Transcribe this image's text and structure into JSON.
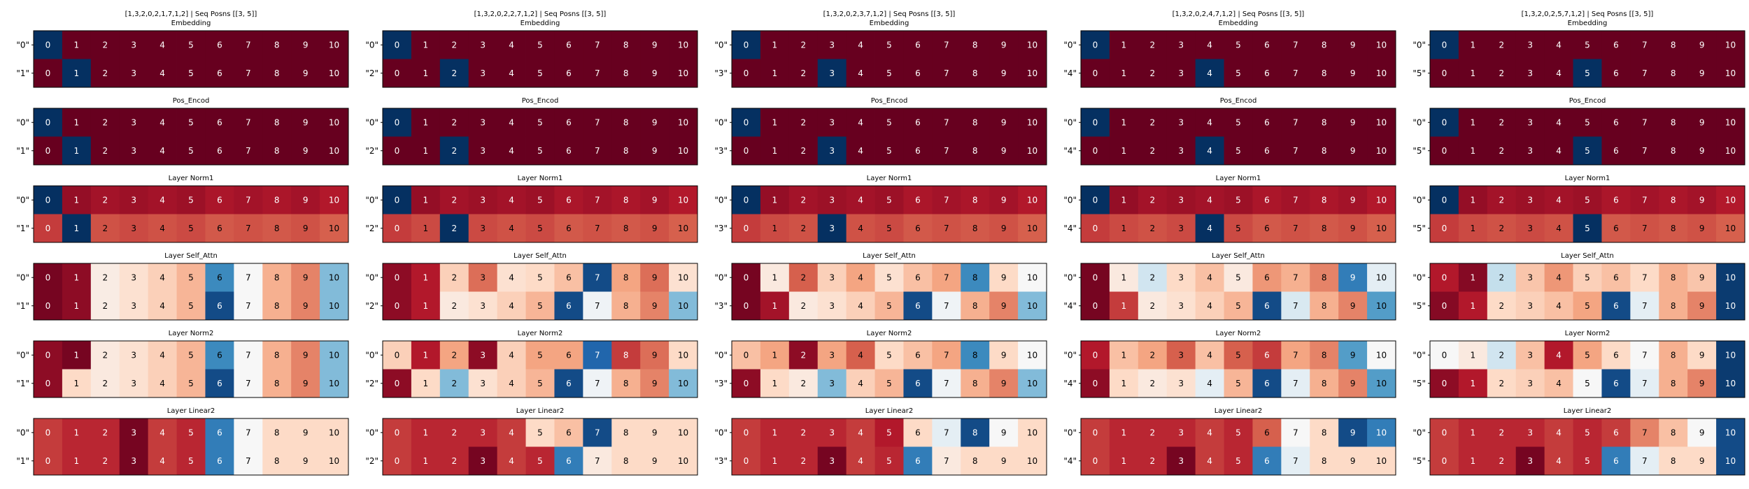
{
  "figure": {
    "row_titles": [
      "Embedding",
      "Pos_Encod",
      "Layer Norm1",
      "Layer Self_Attn",
      "Layer Norm2",
      "Layer Linear2"
    ],
    "columns": [
      {
        "title": "[1,3,2,0,2,1,7,1,2] | Seq Posns [[3, 5]]",
        "ylabels": [
          "\"0\"",
          "\"1\""
        ],
        "seq": [
          0,
          1
        ]
      },
      {
        "title": "[1,3,2,0,2,2,7,1,2] | Seq Posns [[3, 5]]",
        "ylabels": [
          "\"0\"",
          "\"2\""
        ],
        "seq": [
          0,
          2
        ]
      },
      {
        "title": "[1,3,2,0,2,3,7,1,2] | Seq Posns [[3, 5]]",
        "ylabels": [
          "\"0\"",
          "\"3\""
        ],
        "seq": [
          0,
          3
        ]
      },
      {
        "title": "[1,3,2,0,2,4,7,1,2] | Seq Posns [[3, 5]]",
        "ylabels": [
          "\"0\"",
          "\"4\""
        ],
        "seq": [
          0,
          4
        ]
      },
      {
        "title": "[1,3,2,0,2,5,7,1,2] | Seq Posns [[3, 5]]",
        "ylabels": [
          "\"0\"",
          "\"5\""
        ],
        "seq": [
          0,
          5
        ]
      }
    ]
  },
  "chart_data": {
    "type": "heatmap",
    "colormap": "RdBu",
    "x_categories": [
      "0",
      "1",
      "2",
      "3",
      "4",
      "5",
      "6",
      "7",
      "8",
      "9",
      "10"
    ],
    "cell_labels": [
      "0",
      "1",
      "2",
      "3",
      "4",
      "5",
      "6",
      "7",
      "8",
      "9",
      "10"
    ],
    "vmin": 0,
    "vmax": 1,
    "note_values": "values are estimated normalized color intensities in [0,1] (0 = dark red, 1 = dark blue)",
    "panels": {
      "Embedding": [
        [
          [
            1,
            0,
            0,
            0,
            0,
            0,
            0,
            0,
            0,
            0,
            0
          ],
          [
            0,
            1,
            0,
            0,
            0,
            0,
            0,
            0,
            0,
            0,
            0
          ]
        ],
        [
          [
            1,
            0,
            0,
            0,
            0,
            0,
            0,
            0,
            0,
            0,
            0
          ],
          [
            0,
            0,
            1,
            0,
            0,
            0,
            0,
            0,
            0,
            0,
            0
          ]
        ],
        [
          [
            1,
            0,
            0,
            0,
            0,
            0,
            0,
            0,
            0,
            0,
            0
          ],
          [
            0,
            0,
            0,
            1,
            0,
            0,
            0,
            0,
            0,
            0,
            0
          ]
        ],
        [
          [
            1,
            0,
            0,
            0,
            0,
            0,
            0,
            0,
            0,
            0,
            0
          ],
          [
            0,
            0,
            0,
            0,
            1,
            0,
            0,
            0,
            0,
            0,
            0
          ]
        ],
        [
          [
            1,
            0,
            0,
            0,
            0,
            0,
            0,
            0,
            0,
            0,
            0
          ],
          [
            0,
            0,
            0,
            0,
            0,
            1,
            0,
            0,
            0,
            0,
            0
          ]
        ]
      ],
      "Pos_Encod": [
        [
          [
            1,
            0,
            0,
            0,
            0,
            0,
            0,
            0,
            0,
            0,
            0
          ],
          [
            0,
            1,
            0,
            0,
            0,
            0,
            0,
            0,
            0,
            0,
            0
          ]
        ],
        [
          [
            1,
            0,
            0,
            0,
            0,
            0,
            0,
            0,
            0,
            0,
            0
          ],
          [
            0,
            0,
            1,
            0,
            0,
            0,
            0,
            0,
            0,
            0,
            0
          ]
        ],
        [
          [
            1,
            0,
            0,
            0,
            0,
            0,
            0,
            0,
            0,
            0,
            0
          ],
          [
            0,
            0,
            0,
            1,
            0,
            0,
            0,
            0,
            0,
            0,
            0
          ]
        ],
        [
          [
            1,
            0,
            0,
            0,
            0,
            0,
            0,
            0,
            0,
            0,
            0
          ],
          [
            0,
            0,
            0,
            0,
            1,
            0,
            0,
            0,
            0,
            0,
            0
          ]
        ],
        [
          [
            1,
            0,
            0,
            0,
            0,
            0,
            0,
            0,
            0,
            0,
            0
          ],
          [
            0,
            0,
            0,
            0,
            0,
            1,
            0,
            0,
            0,
            0,
            0
          ]
        ]
      ],
      "Layer Norm1": [
        [
          [
            1,
            0.06,
            0.08,
            0.07,
            0.08,
            0.07,
            0.09,
            0.08,
            0.09,
            0.08,
            0.1
          ],
          [
            0.15,
            1,
            0.18,
            0.17,
            0.18,
            0.17,
            0.19,
            0.18,
            0.19,
            0.18,
            0.2
          ]
        ],
        [
          [
            1,
            0.06,
            0.08,
            0.07,
            0.08,
            0.07,
            0.09,
            0.08,
            0.09,
            0.08,
            0.1
          ],
          [
            0.15,
            0.17,
            1,
            0.17,
            0.18,
            0.17,
            0.19,
            0.18,
            0.19,
            0.18,
            0.2
          ]
        ],
        [
          [
            1,
            0.06,
            0.08,
            0.07,
            0.08,
            0.07,
            0.09,
            0.08,
            0.09,
            0.08,
            0.1
          ],
          [
            0.15,
            0.17,
            0.18,
            1,
            0.18,
            0.17,
            0.19,
            0.18,
            0.19,
            0.18,
            0.2
          ]
        ],
        [
          [
            1,
            0.06,
            0.08,
            0.07,
            0.08,
            0.07,
            0.09,
            0.08,
            0.09,
            0.08,
            0.1
          ],
          [
            0.15,
            0.17,
            0.18,
            0.17,
            1,
            0.17,
            0.19,
            0.18,
            0.19,
            0.18,
            0.2
          ]
        ],
        [
          [
            1,
            0.06,
            0.08,
            0.07,
            0.08,
            0.07,
            0.09,
            0.08,
            0.09,
            0.08,
            0.1
          ],
          [
            0.15,
            0.17,
            0.18,
            0.17,
            0.18,
            1,
            0.19,
            0.18,
            0.19,
            0.18,
            0.2
          ]
        ]
      ],
      "Layer Self_Attn": [
        [
          [
            0.02,
            0.05,
            0.46,
            0.42,
            0.38,
            0.33,
            0.82,
            0.5,
            0.32,
            0.25,
            0.72
          ],
          [
            0.02,
            0.05,
            0.46,
            0.42,
            0.38,
            0.33,
            0.95,
            0.5,
            0.32,
            0.25,
            0.72
          ]
        ],
        [
          [
            0.05,
            0.1,
            0.38,
            0.22,
            0.42,
            0.4,
            0.35,
            0.95,
            0.3,
            0.22,
            0.42
          ],
          [
            0.05,
            0.1,
            0.45,
            0.42,
            0.38,
            0.33,
            0.95,
            0.52,
            0.32,
            0.25,
            0.72
          ]
        ],
        [
          [
            0.02,
            0.45,
            0.2,
            0.38,
            0.3,
            0.42,
            0.35,
            0.3,
            0.82,
            0.4,
            0.5
          ],
          [
            0.02,
            0.08,
            0.45,
            0.42,
            0.38,
            0.33,
            0.95,
            0.52,
            0.32,
            0.25,
            0.72
          ]
        ],
        [
          [
            0.02,
            0.45,
            0.6,
            0.4,
            0.35,
            0.45,
            0.28,
            0.32,
            0.25,
            0.85,
            0.55
          ],
          [
            0.02,
            0.15,
            0.45,
            0.42,
            0.38,
            0.33,
            0.95,
            0.58,
            0.32,
            0.25,
            0.78
          ]
        ],
        [
          [
            0.1,
            0.04,
            0.62,
            0.36,
            0.28,
            0.38,
            0.35,
            0.4,
            0.32,
            0.36,
            0.98
          ],
          [
            0.04,
            0.1,
            0.4,
            0.38,
            0.35,
            0.3,
            0.95,
            0.55,
            0.32,
            0.25,
            0.98
          ]
        ]
      ],
      "Layer Norm2": [
        [
          [
            0.05,
            0.02,
            0.45,
            0.42,
            0.38,
            0.33,
            0.82,
            0.5,
            0.32,
            0.25,
            0.72
          ],
          [
            0.05,
            0.4,
            0.45,
            0.42,
            0.38,
            0.33,
            0.95,
            0.5,
            0.32,
            0.25,
            0.72
          ]
        ],
        [
          [
            0.38,
            0.1,
            0.3,
            0.05,
            0.38,
            0.3,
            0.3,
            0.9,
            0.15,
            0.22,
            0.4
          ],
          [
            0.05,
            0.4,
            0.72,
            0.42,
            0.38,
            0.33,
            0.95,
            0.52,
            0.32,
            0.25,
            0.72
          ]
        ],
        [
          [
            0.35,
            0.3,
            0.05,
            0.3,
            0.2,
            0.4,
            0.35,
            0.3,
            0.82,
            0.4,
            0.5
          ],
          [
            0.05,
            0.4,
            0.45,
            0.72,
            0.38,
            0.33,
            0.95,
            0.52,
            0.32,
            0.25,
            0.72
          ]
        ],
        [
          [
            0.1,
            0.35,
            0.3,
            0.2,
            0.35,
            0.2,
            0.15,
            0.3,
            0.25,
            0.78,
            0.5
          ],
          [
            0.05,
            0.4,
            0.45,
            0.42,
            0.55,
            0.33,
            0.95,
            0.55,
            0.32,
            0.25,
            0.78
          ]
        ],
        [
          [
            0.5,
            0.45,
            0.6,
            0.35,
            0.1,
            0.3,
            0.4,
            0.5,
            0.32,
            0.4,
            0.98
          ],
          [
            0.05,
            0.1,
            0.4,
            0.38,
            0.35,
            0.5,
            0.95,
            0.55,
            0.32,
            0.25,
            0.98
          ]
        ]
      ],
      "Layer Linear2": [
        [
          [
            0.15,
            0.12,
            0.12,
            0.02,
            0.15,
            0.12,
            0.85,
            0.5,
            0.4,
            0.4,
            0.4
          ],
          [
            0.15,
            0.12,
            0.12,
            0.02,
            0.15,
            0.12,
            0.85,
            0.5,
            0.4,
            0.4,
            0.4
          ]
        ],
        [
          [
            0.15,
            0.12,
            0.12,
            0.12,
            0.15,
            0.4,
            0.35,
            0.95,
            0.4,
            0.4,
            0.4
          ],
          [
            0.15,
            0.12,
            0.12,
            0.02,
            0.15,
            0.12,
            0.85,
            0.45,
            0.4,
            0.4,
            0.4
          ]
        ],
        [
          [
            0.15,
            0.12,
            0.12,
            0.12,
            0.15,
            0.1,
            0.4,
            0.55,
            0.95,
            0.5,
            0.4
          ],
          [
            0.15,
            0.12,
            0.12,
            0.02,
            0.15,
            0.12,
            0.85,
            0.45,
            0.4,
            0.4,
            0.4
          ]
        ],
        [
          [
            0.15,
            0.12,
            0.12,
            0.12,
            0.15,
            0.12,
            0.2,
            0.5,
            0.4,
            0.95,
            0.85
          ],
          [
            0.15,
            0.12,
            0.12,
            0.02,
            0.15,
            0.12,
            0.85,
            0.55,
            0.4,
            0.4,
            0.4
          ]
        ],
        [
          [
            0.15,
            0.12,
            0.12,
            0.12,
            0.15,
            0.12,
            0.15,
            0.25,
            0.35,
            0.5,
            0.95
          ],
          [
            0.15,
            0.12,
            0.12,
            0.02,
            0.15,
            0.12,
            0.85,
            0.55,
            0.4,
            0.4,
            0.95
          ]
        ]
      ]
    }
  }
}
